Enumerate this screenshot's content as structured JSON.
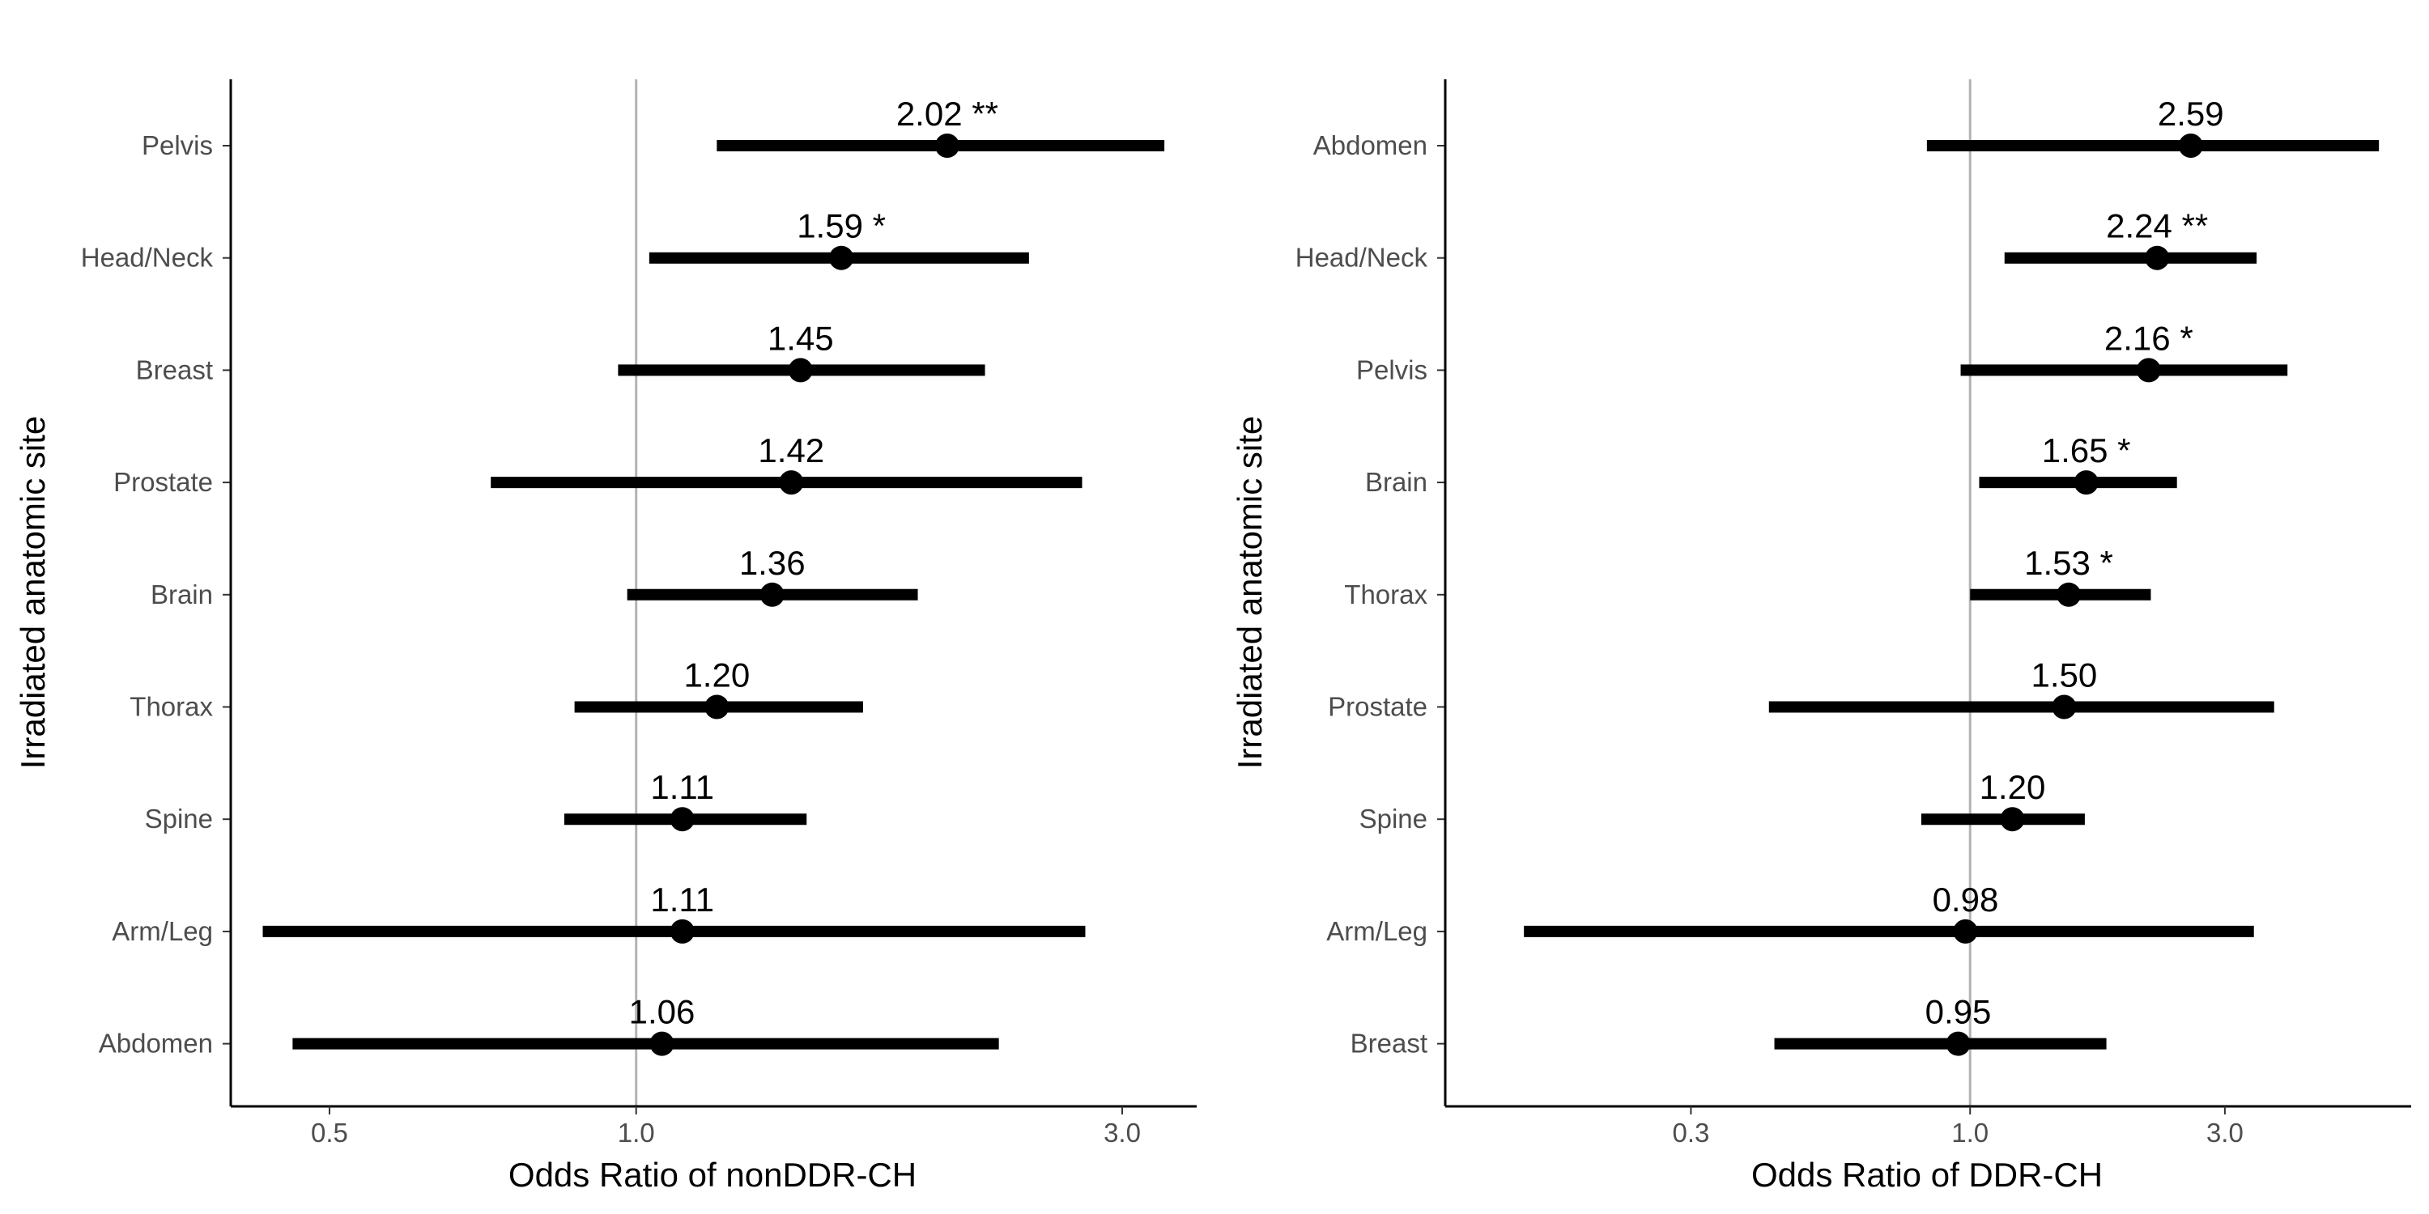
{
  "chart_data": [
    {
      "type": "forest",
      "xlabel": "Odds Ratio of nonDDR-CH",
      "ylabel": "Irradiated anatomic site",
      "x_scale": "log",
      "xlim": [
        0.4,
        3.55
      ],
      "x_ticks": [
        {
          "value": 0.5,
          "label": "0.5"
        },
        {
          "value": 1.0,
          "label": "1.0"
        },
        {
          "value": 3.0,
          "label": "3.0"
        }
      ],
      "reference_line": 1.0,
      "grid": false,
      "rows": [
        {
          "category": "Pelvis",
          "estimate": 2.02,
          "ci_low": 1.2,
          "ci_high": 3.3,
          "label": "2.02 **"
        },
        {
          "category": "Head/Neck",
          "estimate": 1.59,
          "ci_low": 1.03,
          "ci_high": 2.43,
          "label": "1.59 *"
        },
        {
          "category": "Breast",
          "estimate": 1.45,
          "ci_low": 0.96,
          "ci_high": 2.2,
          "label": "1.45"
        },
        {
          "category": "Prostate",
          "estimate": 1.42,
          "ci_low": 0.72,
          "ci_high": 2.74,
          "label": "1.42"
        },
        {
          "category": "Brain",
          "estimate": 1.36,
          "ci_low": 0.98,
          "ci_high": 1.89,
          "label": "1.36"
        },
        {
          "category": "Thorax",
          "estimate": 1.2,
          "ci_low": 0.87,
          "ci_high": 1.67,
          "label": "1.20"
        },
        {
          "category": "Spine",
          "estimate": 1.11,
          "ci_low": 0.85,
          "ci_high": 1.47,
          "label": "1.11"
        },
        {
          "category": "Arm/Leg",
          "estimate": 1.11,
          "ci_low": 0.43,
          "ci_high": 2.76,
          "label": "1.11"
        },
        {
          "category": "Abdomen",
          "estimate": 1.06,
          "ci_low": 0.46,
          "ci_high": 2.27,
          "label": "1.06"
        }
      ]
    },
    {
      "type": "forest",
      "xlabel": "Odds Ratio of DDR-CH",
      "ylabel": "Irradiated anatomic site",
      "x_scale": "log",
      "xlim": [
        0.104,
        6.7
      ],
      "x_ticks": [
        {
          "value": 0.3,
          "label": "0.3"
        },
        {
          "value": 1.0,
          "label": "1.0"
        },
        {
          "value": 3.0,
          "label": "3.0"
        }
      ],
      "reference_line": 1.0,
      "grid": false,
      "rows": [
        {
          "category": "Abdomen",
          "estimate": 2.59,
          "ci_low": 0.83,
          "ci_high": 5.83,
          "label": "2.59"
        },
        {
          "category": "Head/Neck",
          "estimate": 2.24,
          "ci_low": 1.16,
          "ci_high": 3.44,
          "label": "2.24 **"
        },
        {
          "category": "Pelvis",
          "estimate": 2.16,
          "ci_low": 0.96,
          "ci_high": 3.93,
          "label": "2.16 *"
        },
        {
          "category": "Brain",
          "estimate": 1.65,
          "ci_low": 1.04,
          "ci_high": 2.44,
          "label": "1.65 *"
        },
        {
          "category": "Thorax",
          "estimate": 1.53,
          "ci_low": 1.0,
          "ci_high": 2.18,
          "label": "1.53 *"
        },
        {
          "category": "Prostate",
          "estimate": 1.5,
          "ci_low": 0.42,
          "ci_high": 3.71,
          "label": "1.50"
        },
        {
          "category": "Spine",
          "estimate": 1.2,
          "ci_low": 0.81,
          "ci_high": 1.64,
          "label": "1.20"
        },
        {
          "category": "Arm/Leg",
          "estimate": 0.98,
          "ci_low": 0.146,
          "ci_high": 3.4,
          "label": "0.98"
        },
        {
          "category": "Breast",
          "estimate": 0.95,
          "ci_low": 0.43,
          "ci_high": 1.8,
          "label": "0.95"
        }
      ]
    }
  ]
}
